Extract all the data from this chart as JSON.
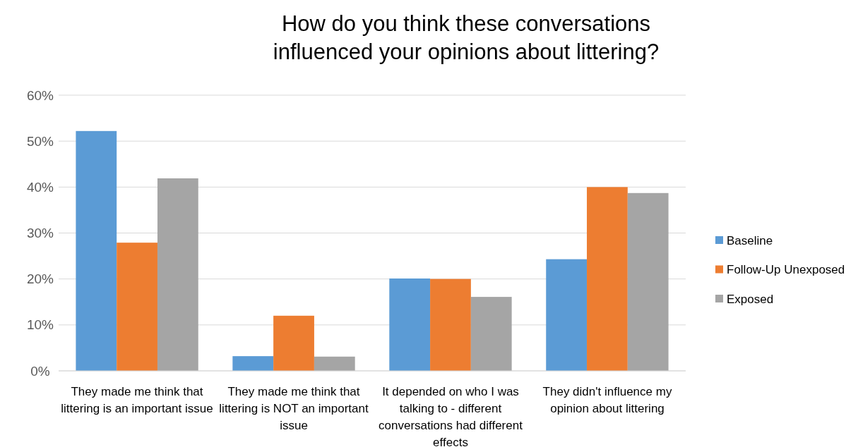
{
  "chart_data": {
    "type": "bar",
    "title": "How do you think these conversations influenced your opinions about littering?",
    "categories": [
      "They made me think that littering is an important issue",
      "They made me think that littering is NOT an important issue",
      "It depended on who I was talking to - different conversations had different effects",
      "They didn't influence my opinion about littering"
    ],
    "series": [
      {
        "name": "Baseline",
        "color": "#5b9bd5",
        "values": [
          52.2,
          3.2,
          20.1,
          24.3
        ]
      },
      {
        "name": "Follow-Up Unexposed",
        "color": "#ed7d31",
        "values": [
          27.9,
          12.0,
          20.0,
          40.0
        ]
      },
      {
        "name": "Exposed",
        "color": "#a5a5a5",
        "values": [
          41.9,
          3.1,
          16.1,
          38.7
        ]
      }
    ],
    "ylim": [
      0,
      60
    ],
    "yticks": [
      {
        "value": 0,
        "label": "0%"
      },
      {
        "value": 10,
        "label": "10%"
      },
      {
        "value": 20,
        "label": "20%"
      },
      {
        "value": 30,
        "label": "30%"
      },
      {
        "value": 40,
        "label": "40%"
      },
      {
        "value": 50,
        "label": "50%"
      },
      {
        "value": 60,
        "label": "60%"
      }
    ],
    "grid": "y",
    "legend": "right"
  }
}
